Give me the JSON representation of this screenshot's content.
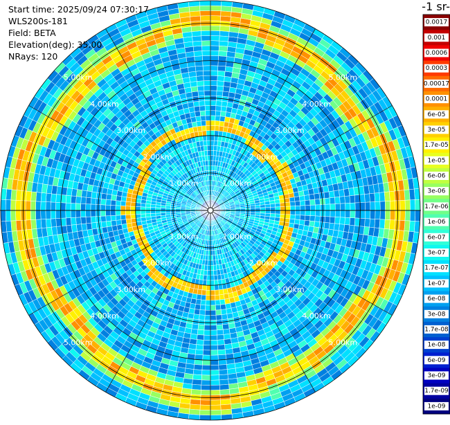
{
  "header": {
    "start_time": "Start time: 2025/09/24 07:30:17",
    "instrument": "WLS200s-181",
    "field": "Field: BETA",
    "elevation": "Elevation(deg): 35.00",
    "nrays": "NRays: 120"
  },
  "colorbar": {
    "title": "-1 sr-",
    "labels": [
      "0.0017",
      "0.001",
      "0.0006",
      "0.0003",
      "0.00017",
      "0.0001",
      "6e-05",
      "3e-05",
      "1.7e-05",
      "1e-05",
      "6e-06",
      "3e-06",
      "1.7e-06",
      "1e-06",
      "6e-07",
      "3e-07",
      "1.7e-07",
      "1e-07",
      "6e-08",
      "3e-08",
      "1.7e-08",
      "1e-08",
      "6e-09",
      "3e-09",
      "1.7e-09",
      "1e-09"
    ],
    "colors": [
      "#8a0000",
      "#c40000",
      "#f00000",
      "#ff3a00",
      "#ff6a00",
      "#ff9000",
      "#ffb000",
      "#ffd000",
      "#fff000",
      "#e8ff20",
      "#c0ff40",
      "#98ff60",
      "#70ff88",
      "#50ffb0",
      "#30ffd8",
      "#10f8f0",
      "#00e0ff",
      "#00c0ff",
      "#00a0f0",
      "#0080e0",
      "#0060d0",
      "#0040d0",
      "#0020d0",
      "#0000c0",
      "#0000a0",
      "#000080"
    ]
  },
  "chart_data": {
    "type": "heatmap",
    "projection": "polar",
    "field": "BETA",
    "elevation_deg": 35.0,
    "nrays": 120,
    "range_rings_km": [
      1,
      2,
      3,
      4,
      5
    ],
    "range_ring_labels": [
      "1.00km",
      "2.00km",
      "3.00km",
      "4.00km",
      "5.00km"
    ],
    "max_range_km": 5.6,
    "radial_spoke_deg": 30,
    "features": [
      {
        "name": "inner-enhanced-ring",
        "range_km": [
          2.05,
          2.25
        ],
        "level": "3e-05"
      },
      {
        "name": "outer-enhanced-ring",
        "range_km": [
          4.75,
          5.05
        ],
        "level": "6e-05"
      },
      {
        "name": "near-field",
        "range_km": [
          0,
          2.0
        ],
        "level": "1e-07"
      }
    ]
  }
}
